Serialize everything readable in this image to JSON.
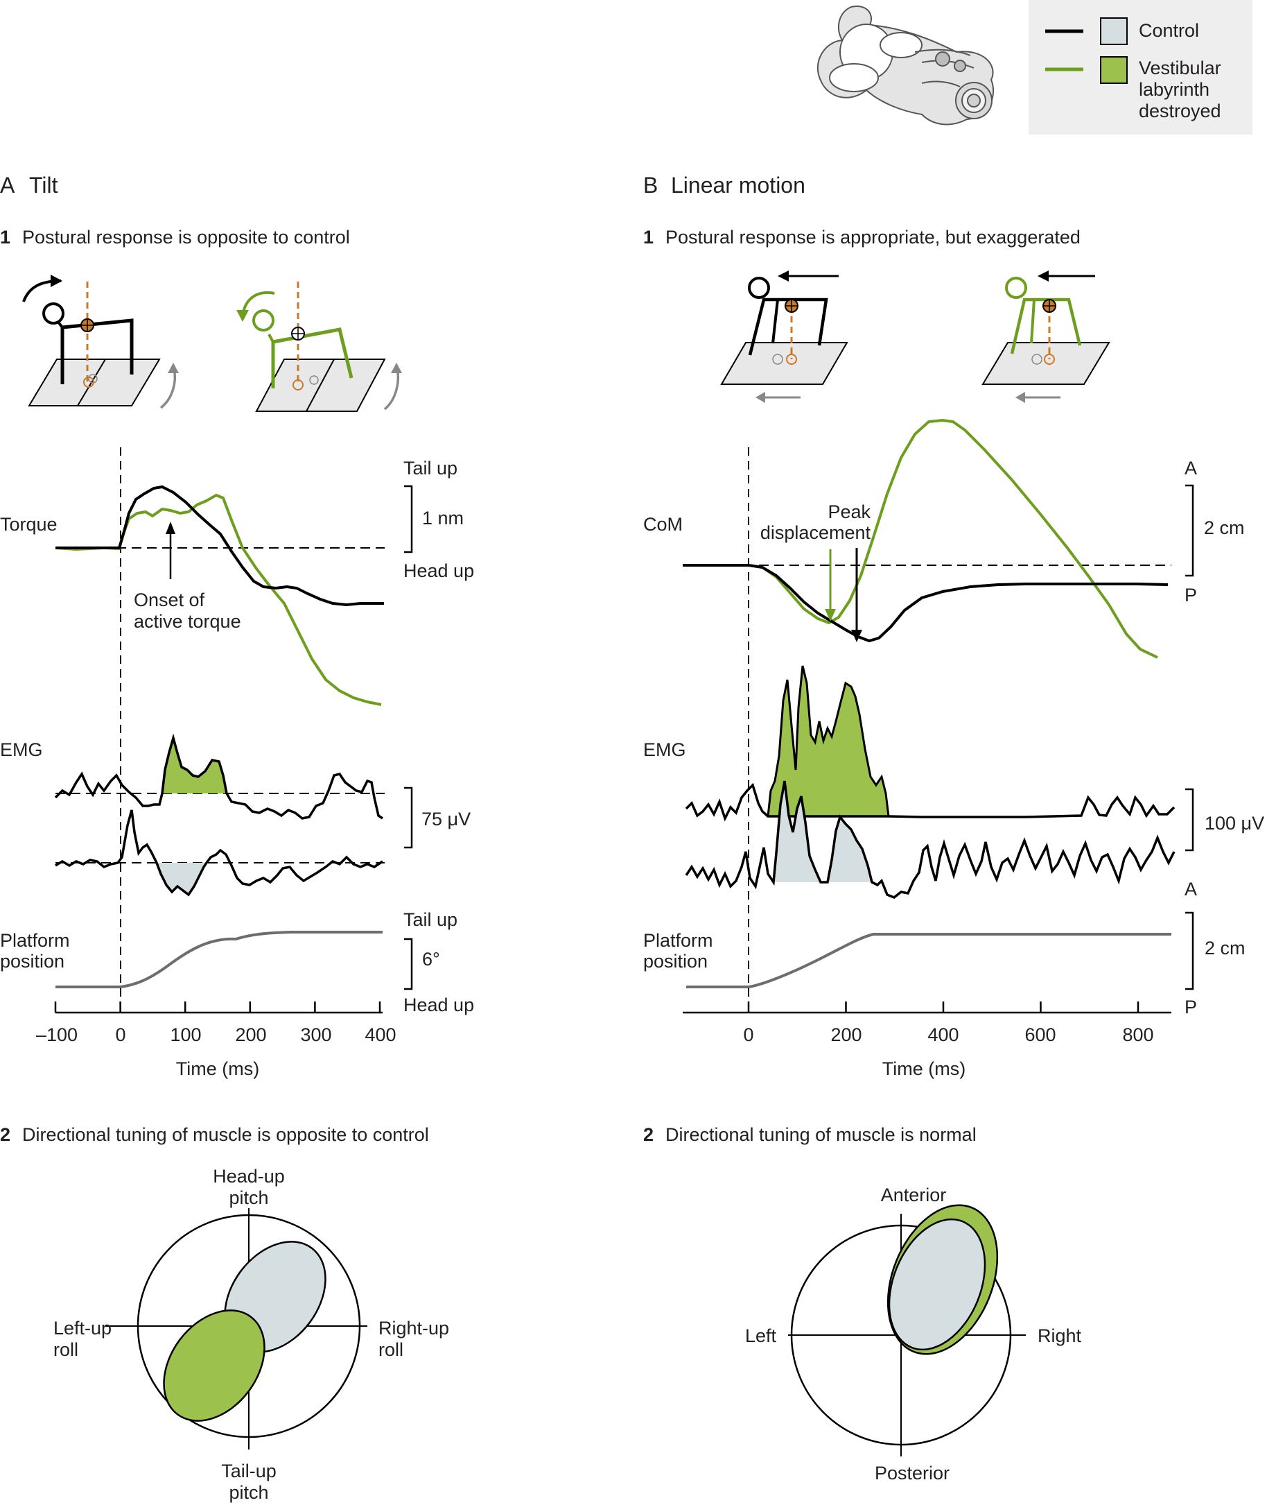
{
  "colors": {
    "control": "#000000",
    "lesion": "#6e9e1e",
    "lesion_fill": "#9cc14d",
    "control_fill": "#d5dfe1",
    "platform_trace": "#6d6d6d",
    "com_marker": "#c8792a",
    "legend_bg": "#eeeeee"
  },
  "legend": {
    "control": "Control",
    "lesion_lines": [
      "Vestibular",
      "labyrinth",
      "destroyed"
    ]
  },
  "panel_a": {
    "letter": "A",
    "title": "Tilt",
    "sub1_num": "1",
    "sub1_text": "Postural response is opposite to control",
    "torque_label": "Torque",
    "torque_top": "Tail up",
    "torque_bottom": "Head up",
    "torque_scale": "1 nm",
    "onset_lines": [
      "Onset of",
      "active torque"
    ],
    "emg_label": "EMG",
    "emg_scale": "75 μV",
    "platform_lines": [
      "Platform",
      "position"
    ],
    "platform_top": "Tail up",
    "platform_bottom": "Head up",
    "platform_scale": "6°",
    "x_ticks": [
      "–100",
      "0",
      "100",
      "200",
      "300",
      "400"
    ],
    "x_label": "Time (ms)",
    "sub2_num": "2",
    "sub2_text": "Directional tuning of muscle is opposite to control",
    "polar": {
      "top": [
        "Head-up",
        "pitch"
      ],
      "bottom": [
        "Tail-up",
        "pitch"
      ],
      "left": [
        "Left-up",
        "roll"
      ],
      "right": [
        "Right-up",
        "roll"
      ]
    }
  },
  "panel_b": {
    "letter": "B",
    "title": "Linear motion",
    "sub1_num": "1",
    "sub1_text": "Postural response is appropriate,  but exaggerated",
    "com_label": "CoM",
    "com_top": "A",
    "com_bottom": "P",
    "com_scale": "2 cm",
    "peak_lines": [
      "Peak",
      "displacement"
    ],
    "emg_label": "EMG",
    "emg_scale": "100 μV",
    "emg_marker": "A",
    "platform_lines": [
      "Platform",
      "position"
    ],
    "platform_scale": "2 cm",
    "platform_bottom": "P",
    "x_ticks": [
      "0",
      "200",
      "400",
      "600",
      "800"
    ],
    "x_label": "Time (ms)",
    "sub2_num": "2",
    "sub2_text": "Directional tuning of muscle is normal",
    "polar": {
      "top": "Anterior",
      "bottom": "Posterior",
      "left": "Left",
      "right": "Right"
    }
  }
}
